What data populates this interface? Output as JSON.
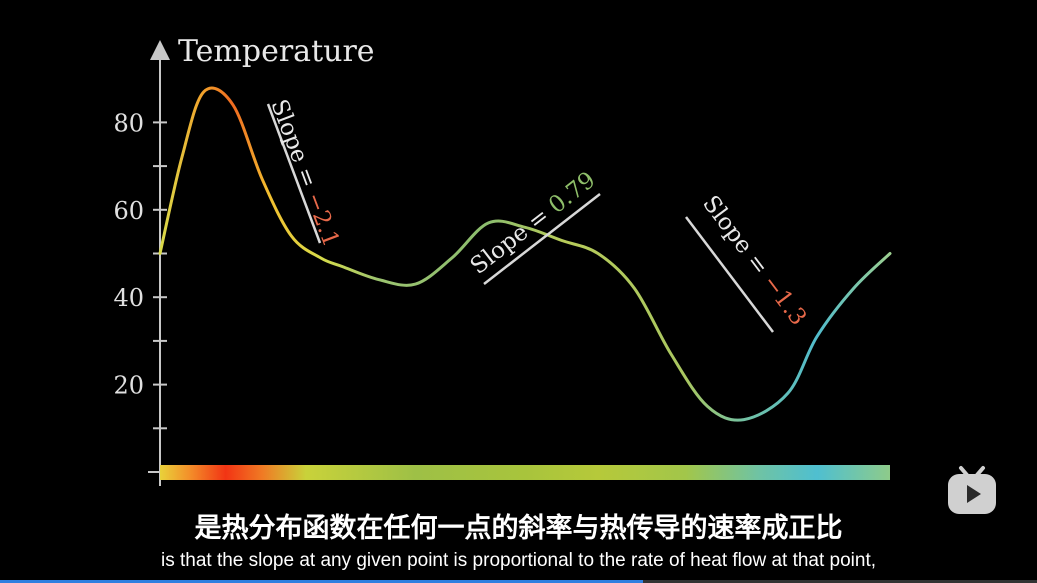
{
  "chart_data": {
    "type": "line",
    "title": "",
    "ylabel": "Temperature",
    "xlabel": "",
    "ylim": [
      0,
      90
    ],
    "yticks": [
      20,
      40,
      60,
      80
    ],
    "ytick_labels": [
      "20",
      "40",
      "60",
      "80"
    ],
    "grid": false,
    "series": [
      {
        "x": [
          0.0,
          0.03,
          0.06,
          0.1,
          0.14,
          0.18,
          0.22,
          0.25,
          0.3,
          0.35,
          0.4,
          0.45,
          0.5,
          0.55,
          0.6,
          0.65,
          0.7,
          0.75,
          0.8,
          0.86,
          0.9,
          0.95,
          1.0
        ],
        "y": [
          50,
          72,
          87,
          84,
          67,
          54,
          49,
          47,
          44,
          43,
          49,
          57,
          56,
          53,
          50,
          42,
          27,
          15,
          12,
          18,
          31,
          42,
          50
        ]
      }
    ],
    "annotations": [
      {
        "label": "Slope = ",
        "value": "−2.1",
        "value_color": "#e8694a"
      },
      {
        "label": "Slope = ",
        "value": "0.79",
        "value_color": "#8fbf6a"
      },
      {
        "label": "Slope = ",
        "value": "−1.3",
        "value_color": "#e8694a"
      }
    ]
  },
  "subtitles": {
    "zh": "是热分布函数在任何一点的斜率与热传导的速率成正比",
    "en": "is that the slope at any given point is proportional to the rate of heat flow at that point,"
  },
  "progress": 0.62,
  "icons": {
    "logo": "bilibili-tv-icon"
  }
}
